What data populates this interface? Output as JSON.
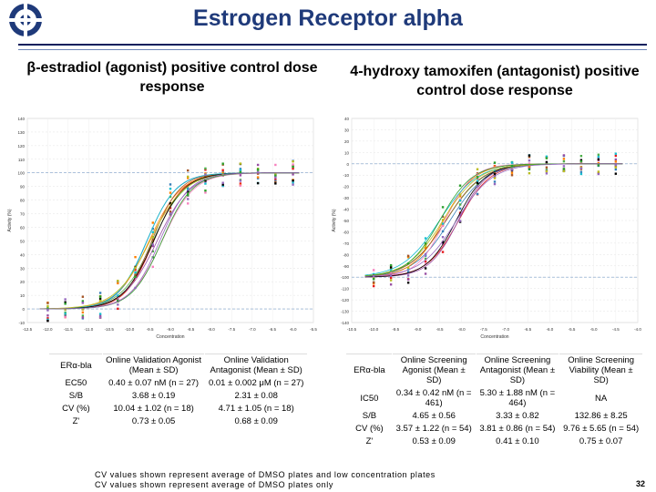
{
  "header": {
    "title": "Estrogen Receptor alpha",
    "brand_color": "#1f3a7a"
  },
  "left_panel": {
    "heading": "β-estradiol (agonist) positive control dose response",
    "table": {
      "corner": "ERα-bla",
      "columns": [
        "Online Validation Agonist (Mean ± SD)",
        "Online Validation Antagonist (Mean ± SD)"
      ],
      "rows": [
        {
          "label": "EC50",
          "cells": [
            "0.40 ± 0.07 nM (n = 27)",
            "0.01 ± 0.002 μM (n = 27)"
          ]
        },
        {
          "label": "S/B",
          "cells": [
            "3.68 ± 0.19",
            "2.31 ± 0.08"
          ]
        },
        {
          "label": "CV (%)",
          "cells": [
            "10.04 ± 1.02 (n = 18)",
            "4.71 ± 1.05 (n = 18)"
          ]
        },
        {
          "label": "Z'",
          "cells": [
            "0.73 ± 0.05",
            "0.68 ± 0.09"
          ]
        }
      ]
    }
  },
  "right_panel": {
    "heading": "4-hydroxy tamoxifen (antagonist) positive control dose response",
    "table": {
      "corner": "ERα-bla",
      "columns": [
        "Online Screening Agonist (Mean ± SD)",
        "Online Screening Antagonist (Mean ± SD)",
        "Online Screening Viability (Mean ± SD)"
      ],
      "rows": [
        {
          "label": "IC50",
          "cells": [
            "0.34 ± 0.42 nM (n = 461)",
            "5.30 ± 1.88 nM (n = 464)",
            "NA"
          ]
        },
        {
          "label": "S/B",
          "cells": [
            "4.65 ± 0.56",
            "3.33 ± 0.82",
            "132.86 ± 8.25"
          ]
        },
        {
          "label": "CV (%)",
          "cells": [
            "3.57 ± 1.22 (n = 54)",
            "3.81 ± 0.86 (n = 54)",
            "9.76 ± 5.65 (n = 54)"
          ]
        },
        {
          "label": "Z'",
          "cells": [
            "0.53 ± 0.09",
            "0.41 ± 0.10",
            "0.75 ± 0.07"
          ]
        }
      ]
    }
  },
  "chart_data": [
    {
      "type": "scatter",
      "xlabel": "Concentration",
      "ylabel": "Activity (%)",
      "x_ticks": [
        "-12.5",
        "-12.0",
        "-11.5",
        "-11.0",
        "-10.5",
        "-10.0",
        "-9.5",
        "-9.0",
        "-8.5",
        "-8.0",
        "-7.5",
        "-7.0",
        "-6.5",
        "-6.0",
        "-5.5"
      ],
      "y_ticks": [
        "140",
        "130",
        "120",
        "110",
        "100",
        "90",
        "80",
        "70",
        "60",
        "50",
        "40",
        "30",
        "20",
        "10",
        "0",
        "-10"
      ],
      "ylim": [
        -10,
        140
      ],
      "curve": {
        "bottom": 0,
        "top": 100,
        "log_ec50": -9.4,
        "hill": 1.2
      },
      "grid": true
    },
    {
      "type": "scatter",
      "xlabel": "Concentration",
      "ylabel": "Activity (%)",
      "x_ticks": [
        "-10.5",
        "-10.0",
        "-9.5",
        "-9.0",
        "-8.5",
        "-8.0",
        "-7.5",
        "-7.0",
        "-6.5",
        "-6.0",
        "-5.5",
        "-5.0",
        "-4.5",
        "-4.0"
      ],
      "y_ticks": [
        "40",
        "30",
        "20",
        "10",
        "0",
        "-10",
        "-20",
        "-30",
        "-40",
        "-50",
        "-60",
        "-70",
        "-80",
        "-90",
        "-100",
        "-110",
        "-120",
        "-130",
        "-140"
      ],
      "ylim": [
        -140,
        40
      ],
      "curve": {
        "bottom": -100,
        "top": 0,
        "log_ec50": -8.3,
        "hill": 1.2
      },
      "grid": true
    }
  ],
  "footnote": {
    "line1": "CV values shown represent average of DMSO plates and low concentration plates",
    "line2": "CV values shown represent average of DMSO plates only"
  },
  "page_number": "32"
}
